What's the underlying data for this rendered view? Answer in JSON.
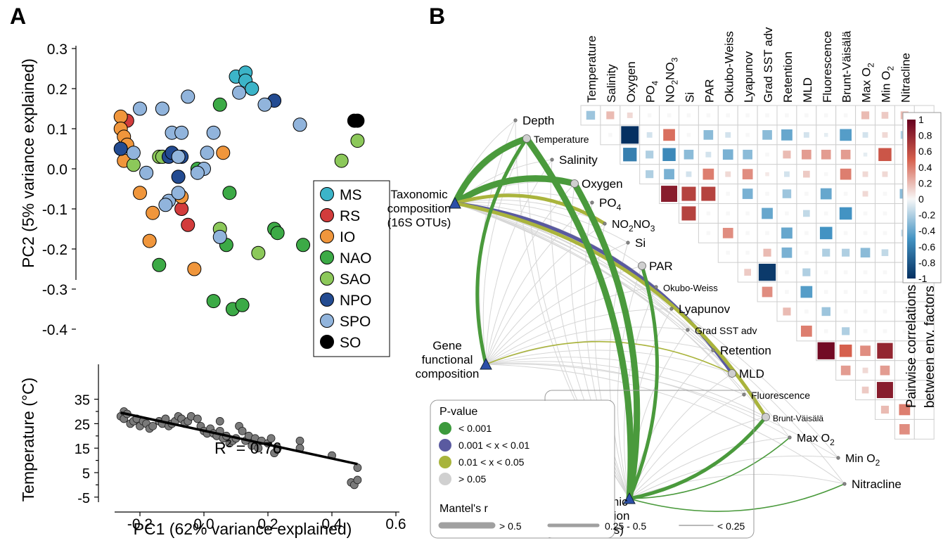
{
  "panels": {
    "a": {
      "label": "A"
    },
    "b": {
      "label": "B"
    }
  },
  "chart_data": [
    {
      "type": "scatter",
      "panel": "A (top)",
      "xlabel": "",
      "ylabel": "PC2 (5% variance explained)",
      "ylim": [
        -0.4,
        0.3
      ],
      "xlim": [
        -0.35,
        0.6
      ],
      "y_ticks": [
        "0.3",
        "0.2",
        "0.1",
        "0.0",
        "-0.1",
        "-0.2",
        "-0.3",
        "-0.4"
      ],
      "legend": {
        "placement": "right",
        "entries": [
          {
            "name": "MS",
            "color": "#3cb4c8"
          },
          {
            "name": "RS",
            "color": "#d23c3c"
          },
          {
            "name": "IO",
            "color": "#f0963c"
          },
          {
            "name": "NAO",
            "color": "#3caa46"
          },
          {
            "name": "SAO",
            "color": "#8cc85a"
          },
          {
            "name": "NPO",
            "color": "#234b91"
          },
          {
            "name": "SPO",
            "color": "#91b4dc"
          },
          {
            "name": "SO",
            "color": "#000000"
          }
        ]
      },
      "series": [
        {
          "name": "MS",
          "points": [
            [
              0.1,
              0.23
            ],
            [
              0.13,
              0.24
            ],
            [
              0.13,
              0.22
            ],
            [
              0.15,
              0.2
            ]
          ]
        },
        {
          "name": "RS",
          "points": [
            [
              -0.24,
              0.12
            ],
            [
              -0.23,
              0.02
            ],
            [
              -0.07,
              -0.1
            ],
            [
              -0.05,
              -0.14
            ]
          ]
        },
        {
          "name": "IO",
          "points": [
            [
              -0.26,
              0.13
            ],
            [
              -0.26,
              0.1
            ],
            [
              -0.25,
              0.08
            ],
            [
              -0.24,
              0.06
            ],
            [
              -0.25,
              0.02
            ],
            [
              -0.2,
              -0.06
            ],
            [
              -0.16,
              -0.11
            ],
            [
              -0.17,
              -0.18
            ],
            [
              0.06,
              0.04
            ],
            [
              -0.07,
              -0.07
            ],
            [
              -0.03,
              -0.25
            ]
          ]
        },
        {
          "name": "NAO",
          "points": [
            [
              0.05,
              0.16
            ],
            [
              -0.02,
              0.0
            ],
            [
              0.08,
              -0.06
            ],
            [
              0.07,
              -0.19
            ],
            [
              0.22,
              -0.15
            ],
            [
              0.23,
              -0.16
            ],
            [
              0.31,
              -0.19
            ],
            [
              -0.14,
              -0.24
            ],
            [
              0.03,
              -0.33
            ],
            [
              0.09,
              -0.35
            ],
            [
              0.12,
              -0.34
            ]
          ]
        },
        {
          "name": "SAO",
          "points": [
            [
              -0.22,
              0.01
            ],
            [
              -0.14,
              0.03
            ],
            [
              -0.13,
              0.03
            ],
            [
              0.05,
              -0.15
            ],
            [
              0.17,
              -0.21
            ],
            [
              0.43,
              0.02
            ],
            [
              0.48,
              0.07
            ]
          ]
        },
        {
          "name": "NPO",
          "points": [
            [
              -0.26,
              0.05
            ],
            [
              -0.11,
              0.03
            ],
            [
              -0.1,
              0.04
            ],
            [
              -0.07,
              0.03
            ],
            [
              -0.08,
              -0.02
            ],
            [
              0.22,
              0.17
            ]
          ]
        },
        {
          "name": "SPO",
          "points": [
            [
              -0.2,
              0.15
            ],
            [
              -0.13,
              0.15
            ],
            [
              -0.05,
              0.18
            ],
            [
              0.11,
              0.19
            ],
            [
              0.19,
              0.16
            ],
            [
              0.3,
              0.11
            ],
            [
              0.01,
              0.04
            ],
            [
              0.03,
              0.09
            ],
            [
              -0.1,
              0.09
            ],
            [
              -0.07,
              0.09
            ],
            [
              -0.22,
              0.04
            ],
            [
              -0.18,
              -0.01
            ],
            [
              -0.08,
              0.03
            ],
            [
              -0.11,
              -0.08
            ],
            [
              -0.12,
              -0.09
            ],
            [
              -0.08,
              -0.06
            ],
            [
              0.0,
              0.0
            ],
            [
              -0.02,
              -0.01
            ],
            [
              0.05,
              -0.17
            ]
          ]
        },
        {
          "name": "SO",
          "points": [
            [
              0.47,
              0.12
            ],
            [
              0.48,
              0.12
            ]
          ]
        }
      ]
    },
    {
      "type": "scatter",
      "panel": "A (bottom)",
      "xlabel": "PC1 (62% variance explained)",
      "ylabel": "Temperature (°C)",
      "xlim": [
        -0.35,
        0.6
      ],
      "ylim": [
        -5,
        35
      ],
      "x_ticks": [
        "-0.2",
        "0.0",
        "0.2",
        "0.4",
        "0.6"
      ],
      "y_ticks": [
        "35",
        "30",
        "25",
        "20",
        "15",
        "10",
        "5",
        "0",
        "-5"
      ],
      "annotation": {
        "text_main": "R",
        "text_sup": "2",
        "text_rest": " = 0.76"
      },
      "fit_line": {
        "x": [
          -0.26,
          0.48
        ],
        "y": [
          29.5,
          8.5
        ]
      },
      "points": [
        [
          -0.26,
          28
        ],
        [
          -0.25,
          30
        ],
        [
          -0.25,
          27
        ],
        [
          -0.24,
          29
        ],
        [
          -0.23,
          25
        ],
        [
          -0.22,
          26
        ],
        [
          -0.21,
          27
        ],
        [
          -0.2,
          24
        ],
        [
          -0.19,
          26
        ],
        [
          -0.18,
          25
        ],
        [
          -0.17,
          23
        ],
        [
          -0.16,
          24
        ],
        [
          -0.14,
          26
        ],
        [
          -0.13,
          25
        ],
        [
          -0.12,
          27
        ],
        [
          -0.11,
          24
        ],
        [
          -0.1,
          25
        ],
        [
          -0.09,
          26
        ],
        [
          -0.08,
          28
        ],
        [
          -0.07,
          27
        ],
        [
          -0.06,
          25
        ],
        [
          -0.05,
          26
        ],
        [
          -0.04,
          28
        ],
        [
          -0.02,
          27
        ],
        [
          -0.01,
          24
        ],
        [
          0.0,
          22
        ],
        [
          0.01,
          21
        ],
        [
          0.02,
          23
        ],
        [
          0.03,
          21
        ],
        [
          0.04,
          20
        ],
        [
          0.05,
          22
        ],
        [
          0.05,
          26
        ],
        [
          0.06,
          19
        ],
        [
          0.07,
          20
        ],
        [
          0.08,
          17
        ],
        [
          0.09,
          18
        ],
        [
          0.1,
          19
        ],
        [
          0.11,
          24
        ],
        [
          0.12,
          22
        ],
        [
          0.13,
          18
        ],
        [
          0.14,
          20
        ],
        [
          0.15,
          16
        ],
        [
          0.16,
          19
        ],
        [
          0.17,
          15
        ],
        [
          0.18,
          18
        ],
        [
          0.2,
          17
        ],
        [
          0.21,
          19
        ],
        [
          0.22,
          13
        ],
        [
          0.23,
          15
        ],
        [
          0.3,
          18
        ],
        [
          0.3,
          15
        ],
        [
          0.4,
          12
        ],
        [
          0.46,
          1
        ],
        [
          0.47,
          0
        ],
        [
          0.48,
          2
        ],
        [
          0.48,
          7
        ]
      ]
    },
    {
      "type": "heatmap",
      "panel": "B",
      "title": "",
      "side_label_1": "Pairwise correlations",
      "side_label_2": "between env. factors",
      "color_scale": {
        "min": -1,
        "max": 1,
        "ticks": [
          "1",
          "0.8",
          "0.6",
          "0.4",
          "0.2",
          "0",
          "-0.2",
          "-0.4",
          "-0.6",
          "-0.8",
          "-1"
        ],
        "low_color": "#053061",
        "mid_color": "#f7f7f7",
        "high_color": "#67001f"
      },
      "factors": [
        {
          "name": "Depth",
          "sub": ""
        },
        {
          "name": "Temperature",
          "sub": ""
        },
        {
          "name": "Salinity",
          "sub": ""
        },
        {
          "name": "Oxygen",
          "sub": ""
        },
        {
          "name": "PO",
          "sub": "4"
        },
        {
          "name": "NO",
          "sub": "2",
          "name2": "NO",
          "sub2": "3"
        },
        {
          "name": "Si",
          "sub": ""
        },
        {
          "name": "PAR",
          "sub": ""
        },
        {
          "name": "Okubo-Weiss",
          "sub": ""
        },
        {
          "name": "Lyapunov",
          "sub": ""
        },
        {
          "name": "Grad SST adv",
          "sub": ""
        },
        {
          "name": "Retention",
          "sub": ""
        },
        {
          "name": "MLD",
          "sub": ""
        },
        {
          "name": "Fluorescence",
          "sub": ""
        },
        {
          "name": "Brunt-Väisälä",
          "sub": ""
        },
        {
          "name": "Max O",
          "sub": "2"
        },
        {
          "name": "Min O",
          "sub": "2"
        },
        {
          "name": "Nitracline",
          "sub": ""
        }
      ],
      "correlations": [
        [
          0,
          0,
          -0.25,
          0.2,
          0.1,
          0,
          0,
          0,
          0,
          0,
          0,
          0,
          0,
          0,
          0,
          0,
          0.2,
          0.15,
          0.2
        ],
        [
          1,
          1,
          0,
          -1.0,
          -0.1,
          0.45,
          0,
          -0.3,
          -0.1,
          0,
          -0.3,
          -0.4,
          -0.1,
          -0.05,
          -0.45,
          -0.1,
          0.1,
          -0.2
        ],
        [
          2,
          2,
          -0.6,
          -0.2,
          -0.55,
          -0.3,
          -0.1,
          -0.35,
          -0.3,
          0,
          0.2,
          0.3,
          0.3,
          0.3,
          -0.05,
          0.55
        ],
        [
          3,
          3,
          -0.2,
          -0.35,
          -0.1,
          0.4,
          0.1,
          0.35,
          0.05,
          -0.1,
          0.15,
          0,
          0.4,
          0.1,
          0.1
        ],
        [
          4,
          4,
          0.85,
          0.65,
          0.65,
          0,
          -0.35,
          0,
          -0.25,
          0,
          -0.4,
          0,
          0.1,
          0,
          -0.3
        ],
        [
          5,
          5,
          0.65,
          0,
          0,
          0,
          -0.4,
          0,
          -0.15,
          0,
          -0.5,
          0,
          0,
          0,
          -0.2
        ],
        [
          6,
          6,
          0,
          0.35,
          0,
          0,
          -0.4,
          0,
          -0.5,
          0,
          0,
          0,
          -0.15
        ],
        [
          7,
          7,
          0,
          0,
          0.2,
          -0.35,
          0,
          -0.2,
          -0.2,
          -0.3,
          -0.15
        ],
        [
          8,
          8,
          0.15,
          -0.95,
          0,
          -0.2,
          0,
          0,
          0,
          0,
          0
        ],
        [
          9,
          9,
          0.35,
          0,
          -0.45,
          0,
          0,
          0,
          0,
          0
        ],
        [
          10,
          10,
          0.2,
          0,
          -0.25,
          0,
          0,
          0,
          0
        ],
        [
          11,
          11,
          0.4,
          0,
          -0.2,
          0,
          0,
          0
        ],
        [
          12,
          12,
          0.95,
          0.5,
          0.35,
          0.8
        ],
        [
          13,
          13,
          0.3,
          0.1,
          0.3
        ],
        [
          14,
          14,
          0.15,
          0.85
        ],
        [
          15,
          15,
          0.2,
          0.4
        ],
        [
          16,
          16,
          0.35
        ]
      ],
      "network": {
        "nodes": [
          {
            "name_1": "Taxonomic",
            "name_2": "composition",
            "name_3": "(16S OTUs)"
          },
          {
            "name_1": "Gene",
            "name_2": "functional",
            "name_3": "composition"
          },
          {
            "name_1": "Taxonomic",
            "name_2": "compostion",
            "name_3": "(mOTUs)"
          }
        ],
        "edges_note": "Mantel's r links from each composition node to environmental factors",
        "strong_edges": [
          {
            "from": 0,
            "to": 1,
            "p": "< 0.001",
            "r": "> 0.5"
          },
          {
            "from": 0,
            "to": 3,
            "p": "< 0.001",
            "r": "> 0.5"
          },
          {
            "from": 0,
            "to": 5,
            "p": "0.01 < x < 0.05",
            "r": "0.25 - 0.5"
          },
          {
            "from": 0,
            "to": 12,
            "p": "0.001 < x < 0.01",
            "r": "0.25 - 0.5"
          },
          {
            "from": 0,
            "to": 14,
            "p": "0.01 < x < 0.05",
            "r": "0.25 - 0.5"
          },
          {
            "from": 1,
            "to": 1,
            "p": "< 0.001",
            "r": "0.25 - 0.5"
          },
          {
            "from": 1,
            "to": 12,
            "p": "0.01 < x < 0.05",
            "r": "< 0.25"
          },
          {
            "from": 2,
            "to": 1,
            "p": "< 0.001",
            "r": "> 0.5"
          },
          {
            "from": 2,
            "to": 3,
            "p": "< 0.001",
            "r": "> 0.5"
          },
          {
            "from": 2,
            "to": 7,
            "p": "< 0.001",
            "r": "0.25 - 0.5"
          },
          {
            "from": 2,
            "to": 14,
            "p": "< 0.001",
            "r": "0.25 - 0.5"
          },
          {
            "from": 2,
            "to": 15,
            "p": "< 0.001",
            "r": "< 0.25"
          },
          {
            "from": 2,
            "to": 17,
            "p": "< 0.001",
            "r": "< 0.25"
          }
        ]
      },
      "legend_pvalue": {
        "title": "P-value",
        "entries": [
          {
            "label": "< 0.001",
            "color": "#3c9a3c"
          },
          {
            "label": "0.001 < x < 0.01",
            "color": "#5a5aa0"
          },
          {
            "label": "0.01 < x < 0.05",
            "color": "#a8b43c"
          },
          {
            "label": "> 0.05",
            "color": "#d0d0d0"
          }
        ]
      },
      "legend_mantel": {
        "title": "Mantel's r",
        "entries": [
          {
            "label": "> 0.5"
          },
          {
            "label": "0.25 - 0.5"
          },
          {
            "label": "< 0.25"
          }
        ]
      }
    }
  ]
}
